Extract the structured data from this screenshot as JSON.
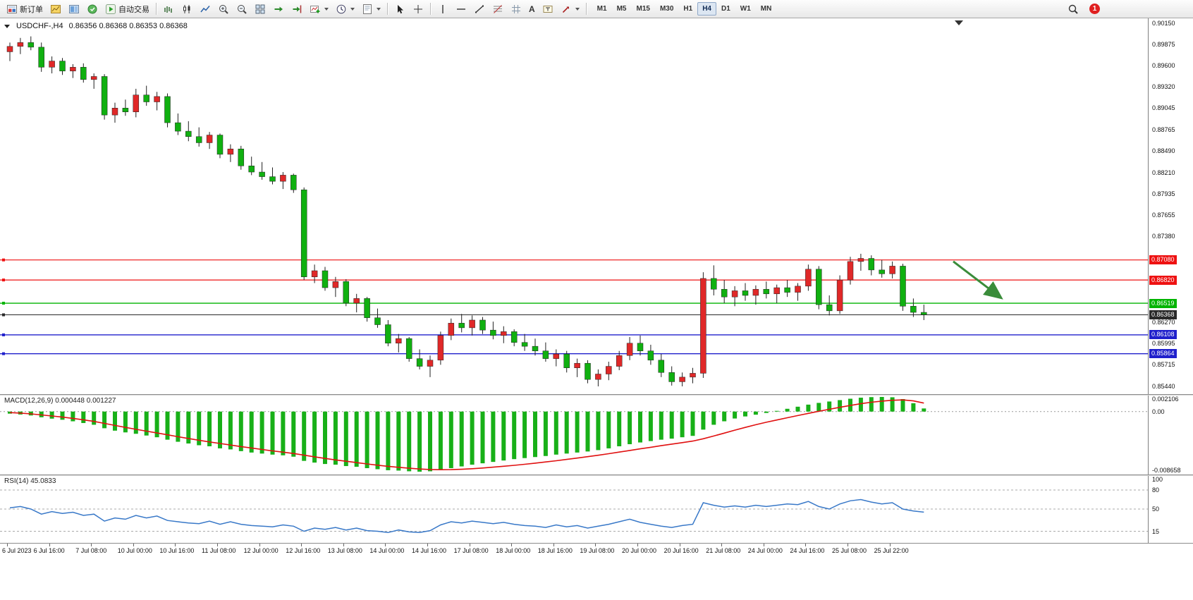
{
  "toolbar": {
    "new_order_label": "新订单",
    "autotrading_label": "自动交易",
    "text_tool_label": "A",
    "timeframes": [
      "M1",
      "M5",
      "M15",
      "M30",
      "H1",
      "H4",
      "D1",
      "W1",
      "MN"
    ],
    "active_timeframe": "H4",
    "notification_count": "1"
  },
  "chart": {
    "symbol_period": "USDCHF-,H4",
    "ohlc": "0.86356 0.86368 0.86353 0.86368"
  },
  "chart_data": {
    "type": "candlestick",
    "symbol": "USDCHF",
    "timeframe": "H4",
    "bull_color": "#e02828",
    "bear_color": "#10b010",
    "wick_color": "#222222",
    "pip_divisor": 10000,
    "price_axis": {
      "top": 0.9015,
      "bottom": 0.8544,
      "ticks": [
        "0.90150",
        "0.89875",
        "0.89600",
        "0.89320",
        "0.89045",
        "0.88765",
        "0.88490",
        "0.88210",
        "0.87935",
        "0.87655",
        "0.87380",
        "0.86270",
        "0.85995",
        "0.85715",
        "0.85440"
      ]
    },
    "horizontal_lines": [
      {
        "name": "resistance-upper",
        "price": 0.8708,
        "label": "0.87080",
        "color": "#ee1111",
        "width": 1.2
      },
      {
        "name": "resistance-lower",
        "price": 0.8682,
        "label": "0.86820",
        "color": "#ee1111",
        "width": 1.2
      },
      {
        "name": "support-green",
        "price": 0.86519,
        "label": "0.86519",
        "color": "#00b400",
        "width": 1.4
      },
      {
        "name": "current-price",
        "price": 0.86368,
        "label": "0.86368",
        "color": "#2a2a2a",
        "width": 1.0
      },
      {
        "name": "support-blue-upper",
        "price": 0.86108,
        "label": "0.86108",
        "color": "#2020cc",
        "width": 1.4
      },
      {
        "name": "support-blue-lower",
        "price": 0.85864,
        "label": "0.85864",
        "color": "#2020cc",
        "width": 1.4
      }
    ],
    "trend_arrow": {
      "from_price": 0.8706,
      "to_price": 0.866,
      "color": "#3a8c3a"
    },
    "time_labels": [
      "6 Jul 2023",
      "6 Jul 16:00",
      "7 Jul 08:00",
      "10 Jul 00:00",
      "10 Jul 16:00",
      "11 Jul 08:00",
      "12 Jul 00:00",
      "12 Jul 16:00",
      "13 Jul 08:00",
      "14 Jul 00:00",
      "14 Jul 16:00",
      "17 Jul 08:00",
      "18 Jul 00:00",
      "18 Jul 16:00",
      "19 Jul 08:00",
      "20 Jul 00:00",
      "20 Jul 16:00",
      "21 Jul 08:00",
      "24 Jul 00:00",
      "24 Jul 16:00",
      "25 Jul 08:00",
      "25 Jul 22:00"
    ],
    "candles_ohlc_pips": [
      [
        8978,
        8990,
        8966,
        8985
      ],
      [
        8985,
        8996,
        8975,
        8990
      ],
      [
        8990,
        8998,
        8980,
        8984
      ],
      [
        8984,
        8990,
        8952,
        8958
      ],
      [
        8958,
        8972,
        8950,
        8966
      ],
      [
        8966,
        8970,
        8948,
        8953
      ],
      [
        8953,
        8962,
        8944,
        8958
      ],
      [
        8958,
        8963,
        8938,
        8942
      ],
      [
        8942,
        8950,
        8930,
        8946
      ],
      [
        8946,
        8949,
        8890,
        8896
      ],
      [
        8896,
        8912,
        8886,
        8905
      ],
      [
        8905,
        8916,
        8895,
        8900
      ],
      [
        8900,
        8930,
        8893,
        8922
      ],
      [
        8922,
        8934,
        8908,
        8913
      ],
      [
        8913,
        8926,
        8902,
        8920
      ],
      [
        8920,
        8924,
        8880,
        8886
      ],
      [
        8886,
        8898,
        8870,
        8875
      ],
      [
        8875,
        8888,
        8862,
        8868
      ],
      [
        8868,
        8880,
        8855,
        8860
      ],
      [
        8860,
        8874,
        8852,
        8870
      ],
      [
        8870,
        8872,
        8840,
        8845
      ],
      [
        8845,
        8858,
        8835,
        8852
      ],
      [
        8852,
        8856,
        8825,
        8830
      ],
      [
        8830,
        8842,
        8818,
        8822
      ],
      [
        8822,
        8835,
        8812,
        8816
      ],
      [
        8816,
        8828,
        8806,
        8810
      ],
      [
        8810,
        8822,
        8800,
        8818
      ],
      [
        8818,
        8820,
        8795,
        8799
      ],
      [
        8799,
        8802,
        8682,
        8686
      ],
      [
        8686,
        8702,
        8678,
        8694
      ],
      [
        8694,
        8699,
        8668,
        8672
      ],
      [
        8672,
        8686,
        8660,
        8680
      ],
      [
        8680,
        8683,
        8648,
        8652
      ],
      [
        8652,
        8664,
        8640,
        8658
      ],
      [
        8658,
        8660,
        8628,
        8633
      ],
      [
        8633,
        8645,
        8620,
        8624
      ],
      [
        8624,
        8630,
        8596,
        8600
      ],
      [
        8600,
        8612,
        8588,
        8606
      ],
      [
        8606,
        8608,
        8576,
        8580
      ],
      [
        8580,
        8592,
        8566,
        8570
      ],
      [
        8570,
        8584,
        8556,
        8578
      ],
      [
        8578,
        8615,
        8572,
        8610
      ],
      [
        8610,
        8632,
        8604,
        8626
      ],
      [
        8626,
        8638,
        8614,
        8620
      ],
      [
        8620,
        8636,
        8610,
        8630
      ],
      [
        8630,
        8634,
        8612,
        8617
      ],
      [
        8617,
        8628,
        8605,
        8610
      ],
      [
        8610,
        8622,
        8600,
        8615
      ],
      [
        8615,
        8618,
        8596,
        8601
      ],
      [
        8601,
        8612,
        8590,
        8596
      ],
      [
        8596,
        8606,
        8584,
        8590
      ],
      [
        8590,
        8601,
        8576,
        8580
      ],
      [
        8580,
        8592,
        8570,
        8586
      ],
      [
        8586,
        8590,
        8562,
        8568
      ],
      [
        8568,
        8580,
        8556,
        8574
      ],
      [
        8574,
        8578,
        8548,
        8553
      ],
      [
        8553,
        8566,
        8544,
        8560
      ],
      [
        8560,
        8576,
        8552,
        8570
      ],
      [
        8570,
        8590,
        8565,
        8584
      ],
      [
        8584,
        8608,
        8578,
        8600
      ],
      [
        8600,
        8610,
        8584,
        8590
      ],
      [
        8590,
        8598,
        8572,
        8578
      ],
      [
        8578,
        8586,
        8556,
        8562
      ],
      [
        8562,
        8570,
        8545,
        8550
      ],
      [
        8550,
        8562,
        8544,
        8556
      ],
      [
        8556,
        8568,
        8548,
        8561
      ],
      [
        8561,
        8692,
        8555,
        8684
      ],
      [
        8684,
        8701,
        8662,
        8670
      ],
      [
        8670,
        8682,
        8652,
        8660
      ],
      [
        8660,
        8674,
        8648,
        8668
      ],
      [
        8668,
        8678,
        8655,
        8662
      ],
      [
        8662,
        8675,
        8650,
        8670
      ],
      [
        8670,
        8680,
        8658,
        8664
      ],
      [
        8664,
        8676,
        8652,
        8672
      ],
      [
        8672,
        8682,
        8660,
        8666
      ],
      [
        8666,
        8678,
        8655,
        8674
      ],
      [
        8674,
        8702,
        8668,
        8696
      ],
      [
        8696,
        8700,
        8644,
        8650
      ],
      [
        8650,
        8662,
        8636,
        8642
      ],
      [
        8642,
        8688,
        8638,
        8682
      ],
      [
        8682,
        8712,
        8676,
        8706
      ],
      [
        8706,
        8716,
        8694,
        8710
      ],
      [
        8710,
        8714,
        8688,
        8695
      ],
      [
        8695,
        8708,
        8685,
        8690
      ],
      [
        8690,
        8706,
        8684,
        8700
      ],
      [
        8700,
        8703,
        8642,
        8648
      ],
      [
        8648,
        8658,
        8634,
        8640
      ],
      [
        8640,
        8650,
        8630,
        8637
      ]
    ],
    "indicators": {
      "macd": {
        "label": "MACD(12,26,9) 0.000448 0.001227",
        "histogram_color": "#18b018",
        "signal_color": "#e01010",
        "scale_max": 0.002106,
        "scale_min": -0.008658,
        "scale_labels": [
          "0.002106",
          "0.00",
          "-0.008658"
        ],
        "values_x1e6": [
          -300,
          -420,
          -560,
          -820,
          -1020,
          -1180,
          -1400,
          -1650,
          -1900,
          -2400,
          -2750,
          -3000,
          -3200,
          -3450,
          -3700,
          -4050,
          -4350,
          -4600,
          -4850,
          -5000,
          -5300,
          -5450,
          -5700,
          -5900,
          -6050,
          -6200,
          -6300,
          -6500,
          -7100,
          -7350,
          -7550,
          -7650,
          -7850,
          -7950,
          -8150,
          -8300,
          -8450,
          -8500,
          -8600,
          -8658,
          -8600,
          -8400,
          -8150,
          -7900,
          -7650,
          -7450,
          -7250,
          -7050,
          -6850,
          -6700,
          -6550,
          -6400,
          -6200,
          -6050,
          -5900,
          -5750,
          -5550,
          -5300,
          -5000,
          -4700,
          -4450,
          -4250,
          -4050,
          -3900,
          -3700,
          -3500,
          -2600,
          -1900,
          -1400,
          -1000,
          -700,
          -450,
          -200,
          100,
          400,
          700,
          1000,
          1250,
          1450,
          1650,
          1850,
          2000,
          2080,
          2106,
          2060,
          1800,
          1200,
          448
        ],
        "signal_x1e6": [
          -150,
          -220,
          -330,
          -480,
          -640,
          -800,
          -980,
          -1180,
          -1420,
          -1700,
          -2000,
          -2280,
          -2550,
          -2820,
          -3080,
          -3350,
          -3620,
          -3880,
          -4130,
          -4370,
          -4600,
          -4820,
          -5040,
          -5250,
          -5460,
          -5660,
          -5850,
          -6040,
          -6280,
          -6520,
          -6750,
          -6960,
          -7160,
          -7350,
          -7540,
          -7720,
          -7890,
          -8030,
          -8160,
          -8270,
          -8340,
          -8370,
          -8360,
          -8310,
          -8230,
          -8130,
          -8010,
          -7880,
          -7740,
          -7590,
          -7430,
          -7260,
          -7080,
          -6890,
          -6700,
          -6500,
          -6290,
          -6070,
          -5840,
          -5600,
          -5370,
          -5140,
          -4910,
          -4690,
          -4470,
          -4250,
          -3920,
          -3520,
          -3100,
          -2680,
          -2280,
          -1900,
          -1540,
          -1210,
          -890,
          -570,
          -260,
          40,
          330,
          610,
          880,
          1130,
          1340,
          1510,
          1630,
          1680,
          1540,
          1227
        ]
      },
      "rsi": {
        "label": "RSI(14) 45.0833",
        "line_color": "#3878c8",
        "levels": [
          80,
          50,
          15
        ],
        "scale_labels": [
          "100",
          "80",
          "50",
          "15"
        ],
        "values": [
          52,
          54,
          50,
          42,
          46,
          43,
          45,
          40,
          42,
          31,
          36,
          34,
          40,
          36,
          39,
          32,
          30,
          28,
          27,
          31,
          26,
          30,
          26,
          24,
          23,
          22,
          25,
          23,
          15,
          20,
          18,
          21,
          17,
          20,
          16,
          15,
          13,
          17,
          14,
          13,
          16,
          25,
          30,
          28,
          31,
          29,
          27,
          29,
          26,
          24,
          23,
          21,
          25,
          22,
          24,
          20,
          23,
          26,
          30,
          34,
          29,
          26,
          23,
          21,
          24,
          26,
          60,
          56,
          53,
          55,
          53,
          56,
          54,
          56,
          58,
          57,
          62,
          54,
          50,
          58,
          63,
          65,
          61,
          58,
          60,
          50,
          47,
          45.08
        ]
      }
    }
  }
}
